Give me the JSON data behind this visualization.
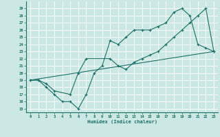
{
  "xlabel": "Humidex (Indice chaleur)",
  "xlim": [
    -0.5,
    23.5
  ],
  "ylim": [
    14.5,
    30.0
  ],
  "xticks": [
    0,
    1,
    2,
    3,
    4,
    5,
    6,
    7,
    8,
    9,
    10,
    11,
    12,
    13,
    14,
    15,
    16,
    17,
    18,
    19,
    20,
    21,
    22,
    23
  ],
  "yticks": [
    15,
    16,
    17,
    18,
    19,
    20,
    21,
    22,
    23,
    24,
    25,
    26,
    27,
    28,
    29
  ],
  "bg_color": "#cce8e4",
  "line_color": "#1a6e65",
  "grid_color": "#ffffff",
  "line1_x": [
    0,
    1,
    2,
    3,
    4,
    5,
    6,
    7,
    8,
    9,
    10,
    11,
    12,
    13,
    14,
    15,
    16,
    17,
    18,
    19,
    20,
    21,
    22,
    23
  ],
  "line1_y": [
    19,
    19,
    18,
    17,
    16,
    16,
    15,
    17,
    20,
    21,
    24.5,
    24,
    25,
    26,
    26,
    26,
    26.5,
    27,
    28.5,
    29,
    28,
    24,
    23.5,
    23
  ],
  "line2_x": [
    0,
    1,
    2,
    3,
    5,
    6,
    7,
    10,
    11,
    12,
    13,
    14,
    15,
    16,
    17,
    18,
    19,
    20,
    21,
    22,
    23
  ],
  "line2_y": [
    19,
    19,
    18.5,
    17.5,
    17,
    20,
    22,
    22,
    21,
    20.5,
    21.5,
    22,
    22.5,
    23,
    24,
    25,
    26,
    27,
    28,
    29,
    23
  ],
  "line3_x": [
    0,
    23
  ],
  "line3_y": [
    19,
    23
  ]
}
